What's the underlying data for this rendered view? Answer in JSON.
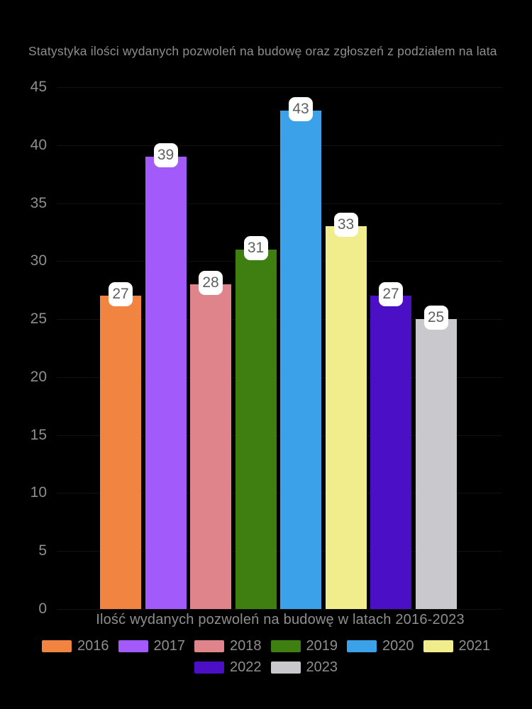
{
  "theme": {
    "background": "#000000",
    "axis_text_color": "#8E8E8E",
    "gridline_color": "#111111",
    "value_label_background": "#FFFFFF",
    "value_label_text_color": "#5F5F5F"
  },
  "chart_data": {
    "type": "bar",
    "title": "Statystyka ilości wydanych pozwoleń na budowę oraz zgłoszeń z podziałem na lata",
    "xlabel": "Ilość wydanych pozwoleń na budowę w latach 2016-2023",
    "ylabel": "",
    "ylim": [
      0,
      45
    ],
    "yticks": [
      0,
      5,
      10,
      15,
      20,
      25,
      30,
      35,
      40,
      45
    ],
    "grid": true,
    "categories": [
      "2016",
      "2017",
      "2018",
      "2019",
      "2020",
      "2021",
      "2022",
      "2023"
    ],
    "values": [
      27,
      39,
      28,
      31,
      43,
      33,
      27,
      25
    ],
    "colors": [
      "#F08440",
      "#A35AFA",
      "#DF848B",
      "#3F7E10",
      "#3BA2E9",
      "#F1ED8C",
      "#4B10C6",
      "#C9C9CD"
    ],
    "value_labels_shown": true,
    "legend_position": "bottom",
    "legend_row_break": 6
  }
}
